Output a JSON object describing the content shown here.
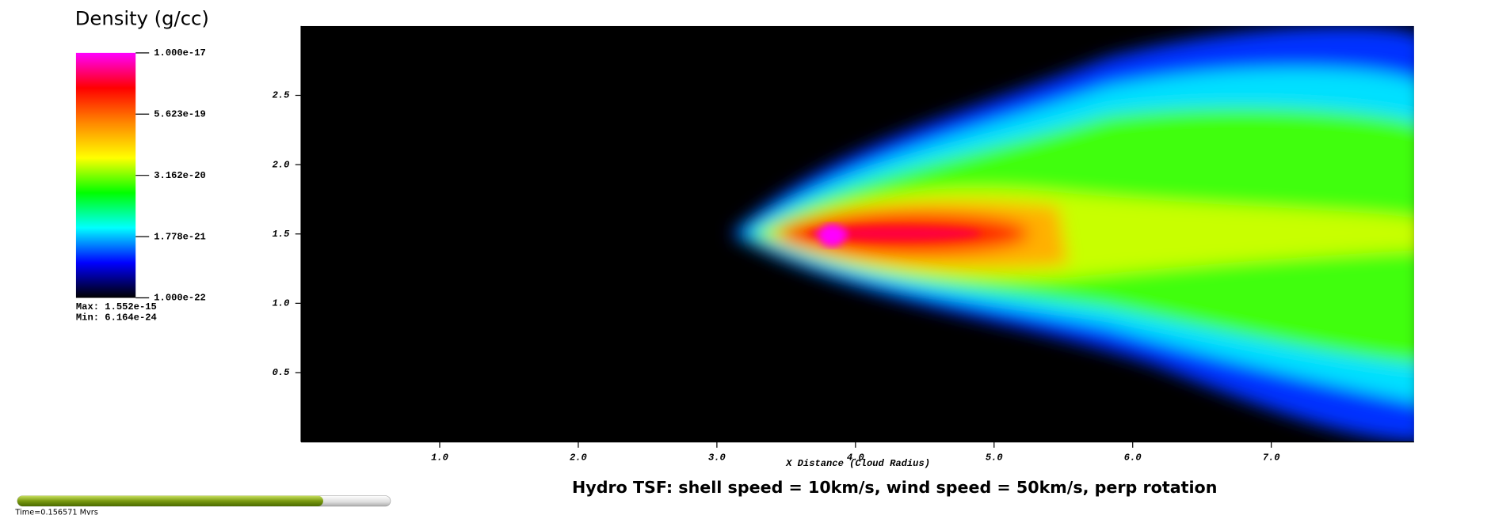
{
  "chart_data": {
    "type": "heatmap",
    "title": "Hydro TSF: shell speed = 10km/s, wind speed = 50km/s, perp rotation",
    "xlabel": "X Distance (Cloud Radius)",
    "xlim": [
      0,
      8.03
    ],
    "xticks": [
      {
        "value": 1,
        "label": "1.0"
      },
      {
        "value": 2,
        "label": "2.0"
      },
      {
        "value": 3,
        "label": "3.0"
      },
      {
        "value": 4,
        "label": "4.0"
      },
      {
        "value": 5,
        "label": "5.0"
      },
      {
        "value": 6,
        "label": "6.0"
      },
      {
        "value": 7,
        "label": "7.0"
      }
    ],
    "ylim": [
      0,
      3.0
    ],
    "yticks": [
      0.5,
      {
        "value": 1,
        "label": "1.0"
      },
      1.5,
      {
        "value": 2,
        "label": "2.0"
      },
      2.5
    ],
    "colorbar": {
      "title": "Density (g/cc)",
      "scale": "log",
      "lim": [
        1e-22,
        1e-17
      ],
      "ticks": [
        {
          "value": 1e-17,
          "label": "1.000e-17"
        },
        {
          "value": 5.623e-19,
          "label": "5.623e-19"
        },
        {
          "value": 3.162e-20,
          "label": "3.162e-20"
        },
        {
          "value": 1.778e-21,
          "label": "1.778e-21"
        },
        {
          "value": 1e-22,
          "label": "1.000e-22"
        }
      ],
      "colors": [
        "#000000",
        "#0000ff",
        "#00ffff",
        "#00ff00",
        "#ffff00",
        "#ff8800",
        "#ff0000",
        "#ff00ff"
      ],
      "max": "Max:  1.552e-15",
      "min": "Min:  6.164e-24"
    },
    "time": "Time=0.156571 Myrs"
  }
}
